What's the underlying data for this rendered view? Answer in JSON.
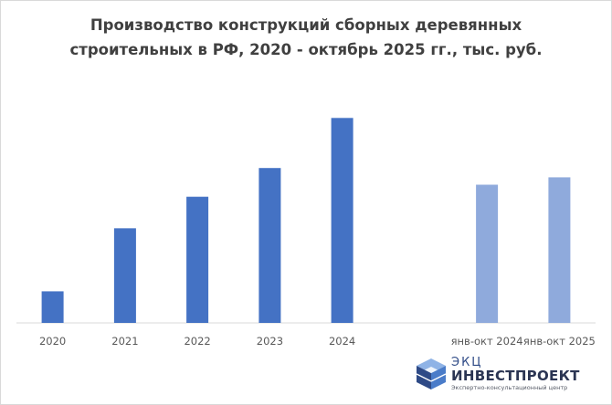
{
  "chart_data": {
    "type": "bar",
    "title_lines": [
      "Производство конструкций сборных деревянных",
      "строительных в РФ, 2020 - октябрь 2025 гг., тыс. руб."
    ],
    "categories": [
      "2020",
      "2021",
      "2022",
      "2023",
      "2024",
      "",
      "янв-окт 2024",
      "янв-окт 2025"
    ],
    "values": [
      34,
      102,
      136,
      167,
      221,
      null,
      149,
      157
    ],
    "bar_colors": [
      "#4472c4",
      "#4472c4",
      "#4472c4",
      "#4472c4",
      "#4472c4",
      null,
      "#8faadc",
      "#8faadc"
    ],
    "ylim": [
      0,
      240
    ],
    "grid": false,
    "legend": "none",
    "value_labels": false
  },
  "logo": {
    "line1": "ЭКЦ",
    "line2": "ИНВЕСТПРОЕКТ",
    "line3": "Экспертно-консультационный центр",
    "colors": [
      "#2e4a86",
      "#4a7cc9",
      "#8fb3e6"
    ]
  }
}
